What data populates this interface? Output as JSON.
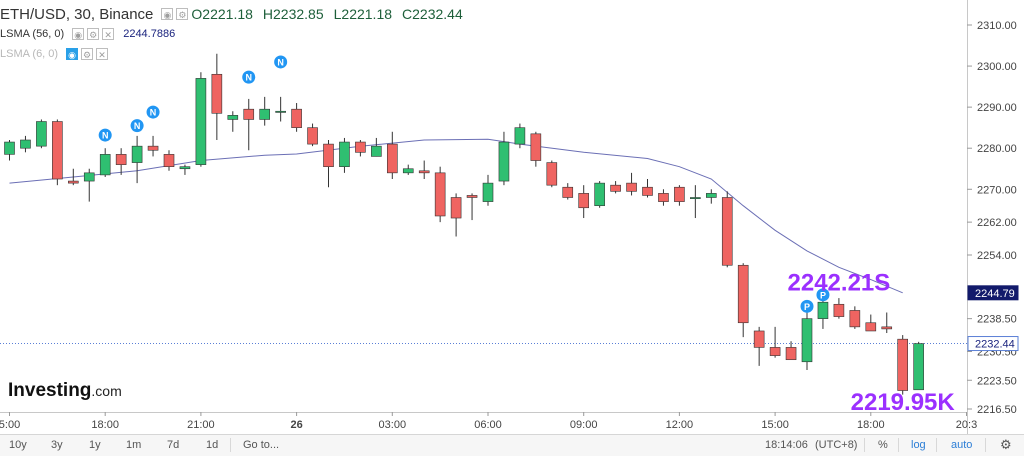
{
  "header": {
    "symbol": "ETH/USD, 30, Binance",
    "open": "O2221.18",
    "high": "H2232.85",
    "low": "L2221.18",
    "close": "C2232.44"
  },
  "indicators": [
    {
      "label": "LSMA (56, 0)",
      "value": "2244.7886"
    },
    {
      "label": "LSMA (6, 0)",
      "value": ""
    }
  ],
  "brand": {
    "name": "Investing",
    "suffix": ".com"
  },
  "toolbar": {
    "ranges": [
      "10y",
      "3y",
      "1y",
      "1m",
      "7d",
      "1d"
    ],
    "goto": "Go to...",
    "time": "18:14:06",
    "timezone": "(UTC+8)",
    "percent": "%",
    "log": "log",
    "auto": "auto"
  },
  "colors": {
    "up": "#2fbf71",
    "down": "#ef6461",
    "lsma": "#6b6fb5",
    "annotation": "#9b30ff",
    "current_price_line": "#5a7fd6",
    "lsma_tag_bg": "#121a6b",
    "marker": "#2196f3"
  },
  "annotations": [
    {
      "text": "2242.21S",
      "index": 52,
      "price": 2245.3
    },
    {
      "text": "2219.95K",
      "index": 56,
      "price": 2216.3
    }
  ],
  "markers": [
    {
      "letter": "N",
      "index": 6,
      "price": 2283.2
    },
    {
      "letter": "N",
      "index": 8,
      "price": 2285.5
    },
    {
      "letter": "N",
      "index": 9,
      "price": 2288.8
    },
    {
      "letter": "N",
      "index": 15,
      "price": 2297.3
    },
    {
      "letter": "N",
      "index": 17,
      "price": 2301.0
    },
    {
      "letter": "P",
      "index": 50,
      "price": 2241.5
    },
    {
      "letter": "P",
      "index": 51,
      "price": 2244.3
    }
  ],
  "chart_data": {
    "type": "candlestick",
    "ylim": [
      2212,
      2313
    ],
    "x_ticks": [
      {
        "label": "5:00",
        "index": 0
      },
      {
        "label": "18:00",
        "index": 6
      },
      {
        "label": "21:00",
        "index": 12
      },
      {
        "label": "26",
        "index": 18
      },
      {
        "label": "03:00",
        "index": 24
      },
      {
        "label": "06:00",
        "index": 30
      },
      {
        "label": "09:00",
        "index": 36
      },
      {
        "label": "12:00",
        "index": 42
      },
      {
        "label": "15:00",
        "index": 48
      },
      {
        "label": "18:00",
        "index": 54
      },
      {
        "label": "20:3",
        "index": 60
      }
    ],
    "y_ticks": [
      2310.0,
      2300.0,
      2290.0,
      2280.0,
      2270.0,
      2262.0,
      2254.0,
      2238.5,
      2230.5,
      2223.5,
      2216.5
    ],
    "y_tick_labels": [
      "2310.00",
      "2300.00",
      "2290.00",
      "2280.00",
      "2270.00",
      "2262.00",
      "2254.00",
      "2238.50",
      "2230.50",
      "2223.50",
      "2216.50"
    ],
    "price_tags": [
      {
        "label": "2244.79",
        "price": 2244.79,
        "style": "lsma"
      },
      {
        "label": "2232.44",
        "price": 2232.44,
        "style": "current"
      }
    ],
    "candles": [
      {
        "o": 2278.5,
        "h": 2282.0,
        "l": 2277.0,
        "c": 2281.5
      },
      {
        "o": 2280.0,
        "h": 2283.0,
        "l": 2279.0,
        "c": 2282.0
      },
      {
        "o": 2280.5,
        "h": 2287.0,
        "l": 2280.0,
        "c": 2286.5
      },
      {
        "o": 2286.5,
        "h": 2287.0,
        "l": 2271.0,
        "c": 2272.5
      },
      {
        "o": 2272.0,
        "h": 2275.0,
        "l": 2271.0,
        "c": 2271.5
      },
      {
        "o": 2272.0,
        "h": 2275.0,
        "l": 2267.0,
        "c": 2274.0
      },
      {
        "o": 2273.5,
        "h": 2280.0,
        "l": 2273.0,
        "c": 2278.5
      },
      {
        "o": 2278.5,
        "h": 2280.0,
        "l": 2273.5,
        "c": 2276.0
      },
      {
        "o": 2276.5,
        "h": 2283.0,
        "l": 2271.5,
        "c": 2280.5
      },
      {
        "o": 2280.5,
        "h": 2283.0,
        "l": 2278.0,
        "c": 2279.5
      },
      {
        "o": 2278.5,
        "h": 2279.5,
        "l": 2274.5,
        "c": 2275.5
      },
      {
        "o": 2275.0,
        "h": 2276.0,
        "l": 2273.5,
        "c": 2275.5
      },
      {
        "o": 2276.0,
        "h": 2298.5,
        "l": 2275.5,
        "c": 2297.0
      },
      {
        "o": 2298.0,
        "h": 2303.0,
        "l": 2282.0,
        "c": 2288.5
      },
      {
        "o": 2287.0,
        "h": 2289.0,
        "l": 2284.0,
        "c": 2288.0
      },
      {
        "o": 2289.5,
        "h": 2292.0,
        "l": 2279.5,
        "c": 2287.0
      },
      {
        "o": 2287.0,
        "h": 2292.5,
        "l": 2285.5,
        "c": 2289.5
      },
      {
        "o": 2289.0,
        "h": 2292.5,
        "l": 2286.5,
        "c": 2289.0
      },
      {
        "o": 2289.5,
        "h": 2291.0,
        "l": 2284.0,
        "c": 2285.0
      },
      {
        "o": 2285.0,
        "h": 2286.0,
        "l": 2280.5,
        "c": 2281.0
      },
      {
        "o": 2281.0,
        "h": 2282.0,
        "l": 2270.5,
        "c": 2275.5
      },
      {
        "o": 2275.5,
        "h": 2282.5,
        "l": 2274.0,
        "c": 2281.5
      },
      {
        "o": 2281.5,
        "h": 2282.0,
        "l": 2278.0,
        "c": 2279.0
      },
      {
        "o": 2278.0,
        "h": 2282.5,
        "l": 2278.0,
        "c": 2280.5
      },
      {
        "o": 2281.0,
        "h": 2284.0,
        "l": 2272.5,
        "c": 2274.0
      },
      {
        "o": 2274.0,
        "h": 2276.0,
        "l": 2273.5,
        "c": 2275.0
      },
      {
        "o": 2274.5,
        "h": 2277.0,
        "l": 2272.5,
        "c": 2274.0
      },
      {
        "o": 2274.0,
        "h": 2275.5,
        "l": 2262.0,
        "c": 2263.5
      },
      {
        "o": 2268.0,
        "h": 2269.0,
        "l": 2258.5,
        "c": 2263.0
      },
      {
        "o": 2268.5,
        "h": 2269.0,
        "l": 2262.5,
        "c": 2268.0
      },
      {
        "o": 2267.0,
        "h": 2273.5,
        "l": 2266.0,
        "c": 2271.5
      },
      {
        "o": 2272.0,
        "h": 2284.0,
        "l": 2271.0,
        "c": 2281.5
      },
      {
        "o": 2281.0,
        "h": 2286.0,
        "l": 2280.0,
        "c": 2285.0
      },
      {
        "o": 2283.5,
        "h": 2284.0,
        "l": 2275.5,
        "c": 2277.0
      },
      {
        "o": 2276.5,
        "h": 2277.0,
        "l": 2270.5,
        "c": 2271.0
      },
      {
        "o": 2270.5,
        "h": 2271.5,
        "l": 2267.5,
        "c": 2268.0
      },
      {
        "o": 2269.0,
        "h": 2271.0,
        "l": 2263.0,
        "c": 2265.5
      },
      {
        "o": 2266.0,
        "h": 2272.0,
        "l": 2265.5,
        "c": 2271.5
      },
      {
        "o": 2271.0,
        "h": 2272.0,
        "l": 2269.0,
        "c": 2269.5
      },
      {
        "o": 2271.5,
        "h": 2274.0,
        "l": 2268.5,
        "c": 2269.5
      },
      {
        "o": 2270.5,
        "h": 2272.5,
        "l": 2268.0,
        "c": 2268.5
      },
      {
        "o": 2269.0,
        "h": 2270.0,
        "l": 2266.0,
        "c": 2267.0
      },
      {
        "o": 2270.5,
        "h": 2271.0,
        "l": 2266.0,
        "c": 2267.0
      },
      {
        "o": 2268.0,
        "h": 2271.0,
        "l": 2263.0,
        "c": 2268.0
      },
      {
        "o": 2268.0,
        "h": 2270.0,
        "l": 2266.5,
        "c": 2269.0
      },
      {
        "o": 2268.0,
        "h": 2269.5,
        "l": 2251.0,
        "c": 2251.5
      },
      {
        "o": 2251.5,
        "h": 2252.0,
        "l": 2234.0,
        "c": 2237.5
      },
      {
        "o": 2235.5,
        "h": 2236.5,
        "l": 2227.0,
        "c": 2231.5
      },
      {
        "o": 2231.5,
        "h": 2236.5,
        "l": 2229.0,
        "c": 2229.5
      },
      {
        "o": 2231.5,
        "h": 2233.0,
        "l": 2228.5,
        "c": 2228.5
      },
      {
        "o": 2228.0,
        "h": 2240.0,
        "l": 2226.0,
        "c": 2238.5
      },
      {
        "o": 2238.5,
        "h": 2245.0,
        "l": 2236.0,
        "c": 2242.5
      },
      {
        "o": 2242.0,
        "h": 2243.5,
        "l": 2238.5,
        "c": 2239.0
      },
      {
        "o": 2240.5,
        "h": 2241.5,
        "l": 2236.0,
        "c": 2236.5
      },
      {
        "o": 2237.5,
        "h": 2239.5,
        "l": 2235.5,
        "c": 2235.5
      },
      {
        "o": 2236.5,
        "h": 2240.0,
        "l": 2235.0,
        "c": 2236.0
      },
      {
        "o": 2233.5,
        "h": 2234.5,
        "l": 2220.0,
        "c": 2221.0
      },
      {
        "o": 2221.18,
        "h": 2232.85,
        "l": 2221.18,
        "c": 2232.44
      }
    ],
    "lsma_56": [
      [
        0,
        2271.5
      ],
      [
        4,
        2273.0
      ],
      [
        8,
        2274.5
      ],
      [
        12,
        2277.0
      ],
      [
        16,
        2278.3
      ],
      [
        18,
        2278.6
      ],
      [
        22,
        2280.5
      ],
      [
        26,
        2282.0
      ],
      [
        30,
        2282.2
      ],
      [
        32,
        2281.0
      ],
      [
        36,
        2279.0
      ],
      [
        40,
        2277.5
      ],
      [
        42,
        2275.5
      ],
      [
        44,
        2272.5
      ],
      [
        46,
        2266.0
      ],
      [
        48,
        2260.0
      ],
      [
        50,
        2255.0
      ],
      [
        52,
        2251.0
      ],
      [
        54,
        2248.0
      ],
      [
        56,
        2244.8
      ]
    ]
  }
}
